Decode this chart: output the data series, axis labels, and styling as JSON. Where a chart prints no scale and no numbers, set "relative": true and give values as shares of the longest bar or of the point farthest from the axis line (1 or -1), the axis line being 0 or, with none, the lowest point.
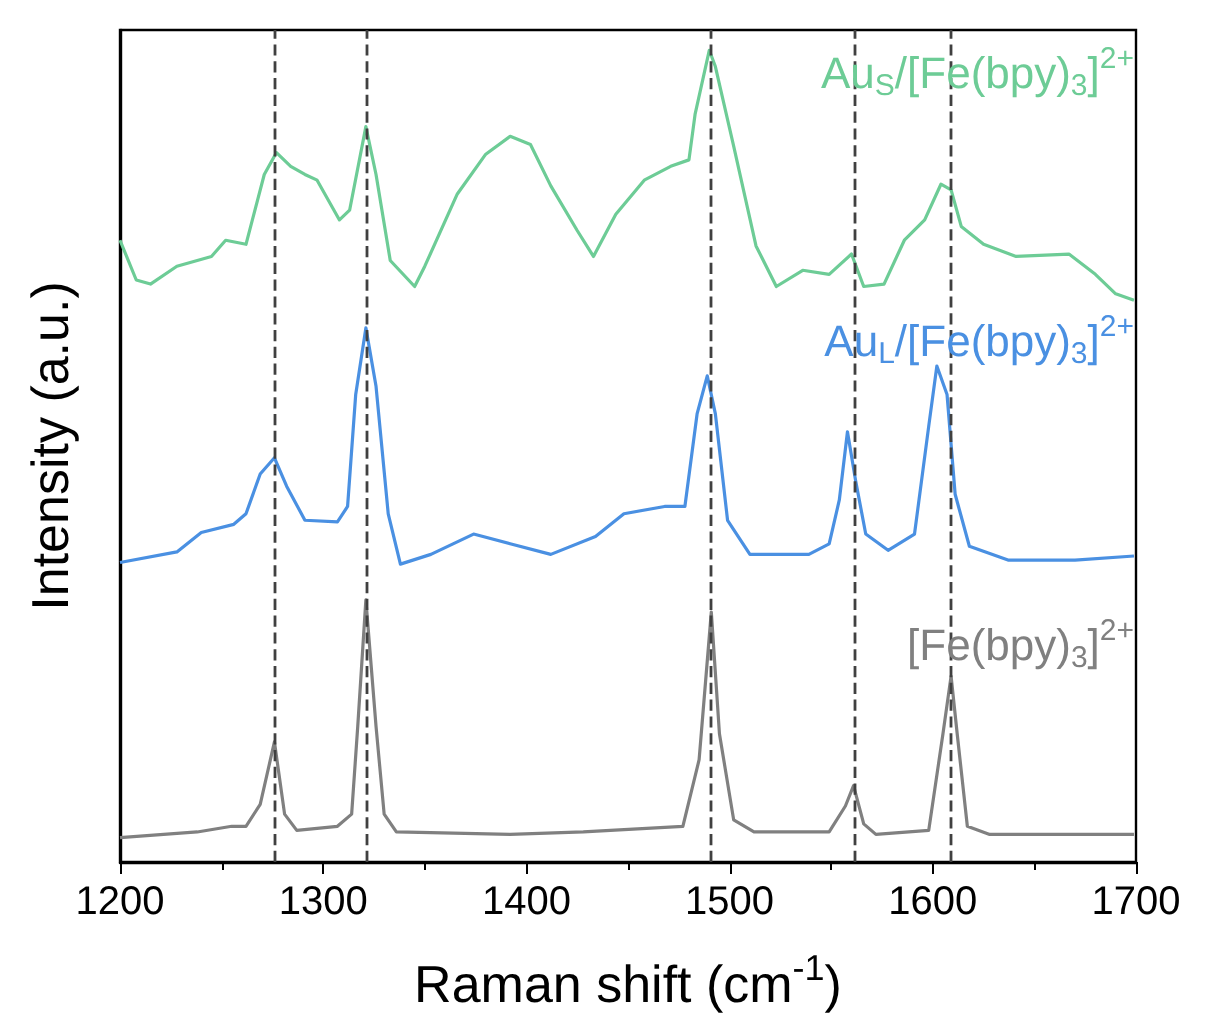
{
  "chart_data": {
    "type": "line",
    "relative": true,
    "xlabel": "Raman shift (cm$^{-1}$)",
    "ylabel": "Intensity (a.u.)",
    "xlim": [
      1200,
      1700
    ],
    "xticks": [
      1200,
      1300,
      1400,
      1500,
      1600,
      1700
    ],
    "line_style": "solid",
    "series": [
      {
        "name": "Au$_{S}$/[Fe(bpy)$_{3}$]$^{2+}$",
        "color": "#6dcc96",
        "x": [
          1200,
          1208,
          1215,
          1228,
          1245,
          1252,
          1262,
          1271,
          1277,
          1284,
          1291,
          1297,
          1308,
          1313,
          1321,
          1326,
          1333,
          1345,
          1350,
          1366,
          1380,
          1392,
          1402,
          1412,
          1425,
          1433,
          1444,
          1458,
          1471,
          1480,
          1483,
          1490,
          1493,
          1502,
          1513,
          1523,
          1536,
          1549,
          1560,
          1566,
          1576,
          1586,
          1596,
          1604,
          1609,
          1614,
          1625,
          1641,
          1667,
          1680,
          1690,
          1699
        ],
        "values": [
          0.766,
          0.717,
          0.712,
          0.734,
          0.746,
          0.766,
          0.761,
          0.847,
          0.874,
          0.857,
          0.847,
          0.84,
          0.791,
          0.803,
          0.906,
          0.847,
          0.741,
          0.709,
          0.734,
          0.823,
          0.872,
          0.894,
          0.884,
          0.833,
          0.778,
          0.746,
          0.798,
          0.84,
          0.857,
          0.865,
          0.921,
          1,
          0.98,
          0.882,
          0.759,
          0.709,
          0.729,
          0.724,
          0.749,
          0.709,
          0.712,
          0.766,
          0.791,
          0.835,
          0.828,
          0.783,
          0.761,
          0.746,
          0.749,
          0.724,
          0.7,
          0.692
        ]
      },
      {
        "name": "Au$_{L}$/[Fe(bpy)$_{3}$]$^{2+}$",
        "color": "#4a90e2",
        "x": [
          1200,
          1228,
          1240,
          1256,
          1262,
          1269,
          1276,
          1282,
          1291,
          1307,
          1312,
          1316,
          1321,
          1326,
          1332,
          1338,
          1353,
          1374,
          1392,
          1412,
          1434,
          1448,
          1468,
          1478,
          1484,
          1489,
          1493,
          1499,
          1510,
          1539,
          1549,
          1554,
          1558,
          1562,
          1567,
          1578,
          1591,
          1598,
          1602,
          1607,
          1611,
          1618,
          1637,
          1670,
          1699
        ],
        "values": [
          0.369,
          0.382,
          0.406,
          0.416,
          0.429,
          0.478,
          0.498,
          0.463,
          0.421,
          0.419,
          0.438,
          0.576,
          0.658,
          0.586,
          0.429,
          0.367,
          0.379,
          0.404,
          0.392,
          0.379,
          0.401,
          0.429,
          0.438,
          0.438,
          0.552,
          0.599,
          0.552,
          0.421,
          0.379,
          0.379,
          0.392,
          0.446,
          0.53,
          0.47,
          0.404,
          0.384,
          0.404,
          0.537,
          0.611,
          0.576,
          0.453,
          0.389,
          0.372,
          0.372,
          0.377
        ]
      },
      {
        "name": "[Fe(bpy)$_{3}$]$^{2+}$",
        "color": "#808080",
        "x": [
          1200,
          1238,
          1255,
          1262,
          1269,
          1276,
          1281,
          1287,
          1307,
          1314,
          1317,
          1321,
          1326,
          1330,
          1336,
          1392,
          1428,
          1477,
          1485,
          1491,
          1495,
          1502,
          1512,
          1549,
          1557,
          1561,
          1566,
          1572,
          1598,
          1605,
          1609,
          1612,
          1617,
          1628,
          1699
        ],
        "values": [
          0.03,
          0.037,
          0.044,
          0.044,
          0.071,
          0.148,
          0.059,
          0.039,
          0.044,
          0.059,
          0.167,
          0.323,
          0.167,
          0.059,
          0.037,
          0.034,
          0.037,
          0.044,
          0.126,
          0.308,
          0.158,
          0.052,
          0.037,
          0.037,
          0.069,
          0.094,
          0.047,
          0.034,
          0.039,
          0.158,
          0.229,
          0.158,
          0.044,
          0.034,
          0.034
        ]
      }
    ],
    "ref_lines": [
      {
        "axis": "x",
        "value": 1276,
        "color": "#404040",
        "line_style": "dashed"
      },
      {
        "axis": "x",
        "value": 1321,
        "color": "#404040",
        "line_style": "dashed"
      },
      {
        "axis": "x",
        "value": 1491,
        "color": "#404040",
        "line_style": "dashed"
      },
      {
        "axis": "x",
        "value": 1561,
        "color": "#404040",
        "line_style": "dashed"
      },
      {
        "axis": "x",
        "value": 1609,
        "color": "#404040",
        "line_style": "dashed"
      }
    ]
  }
}
